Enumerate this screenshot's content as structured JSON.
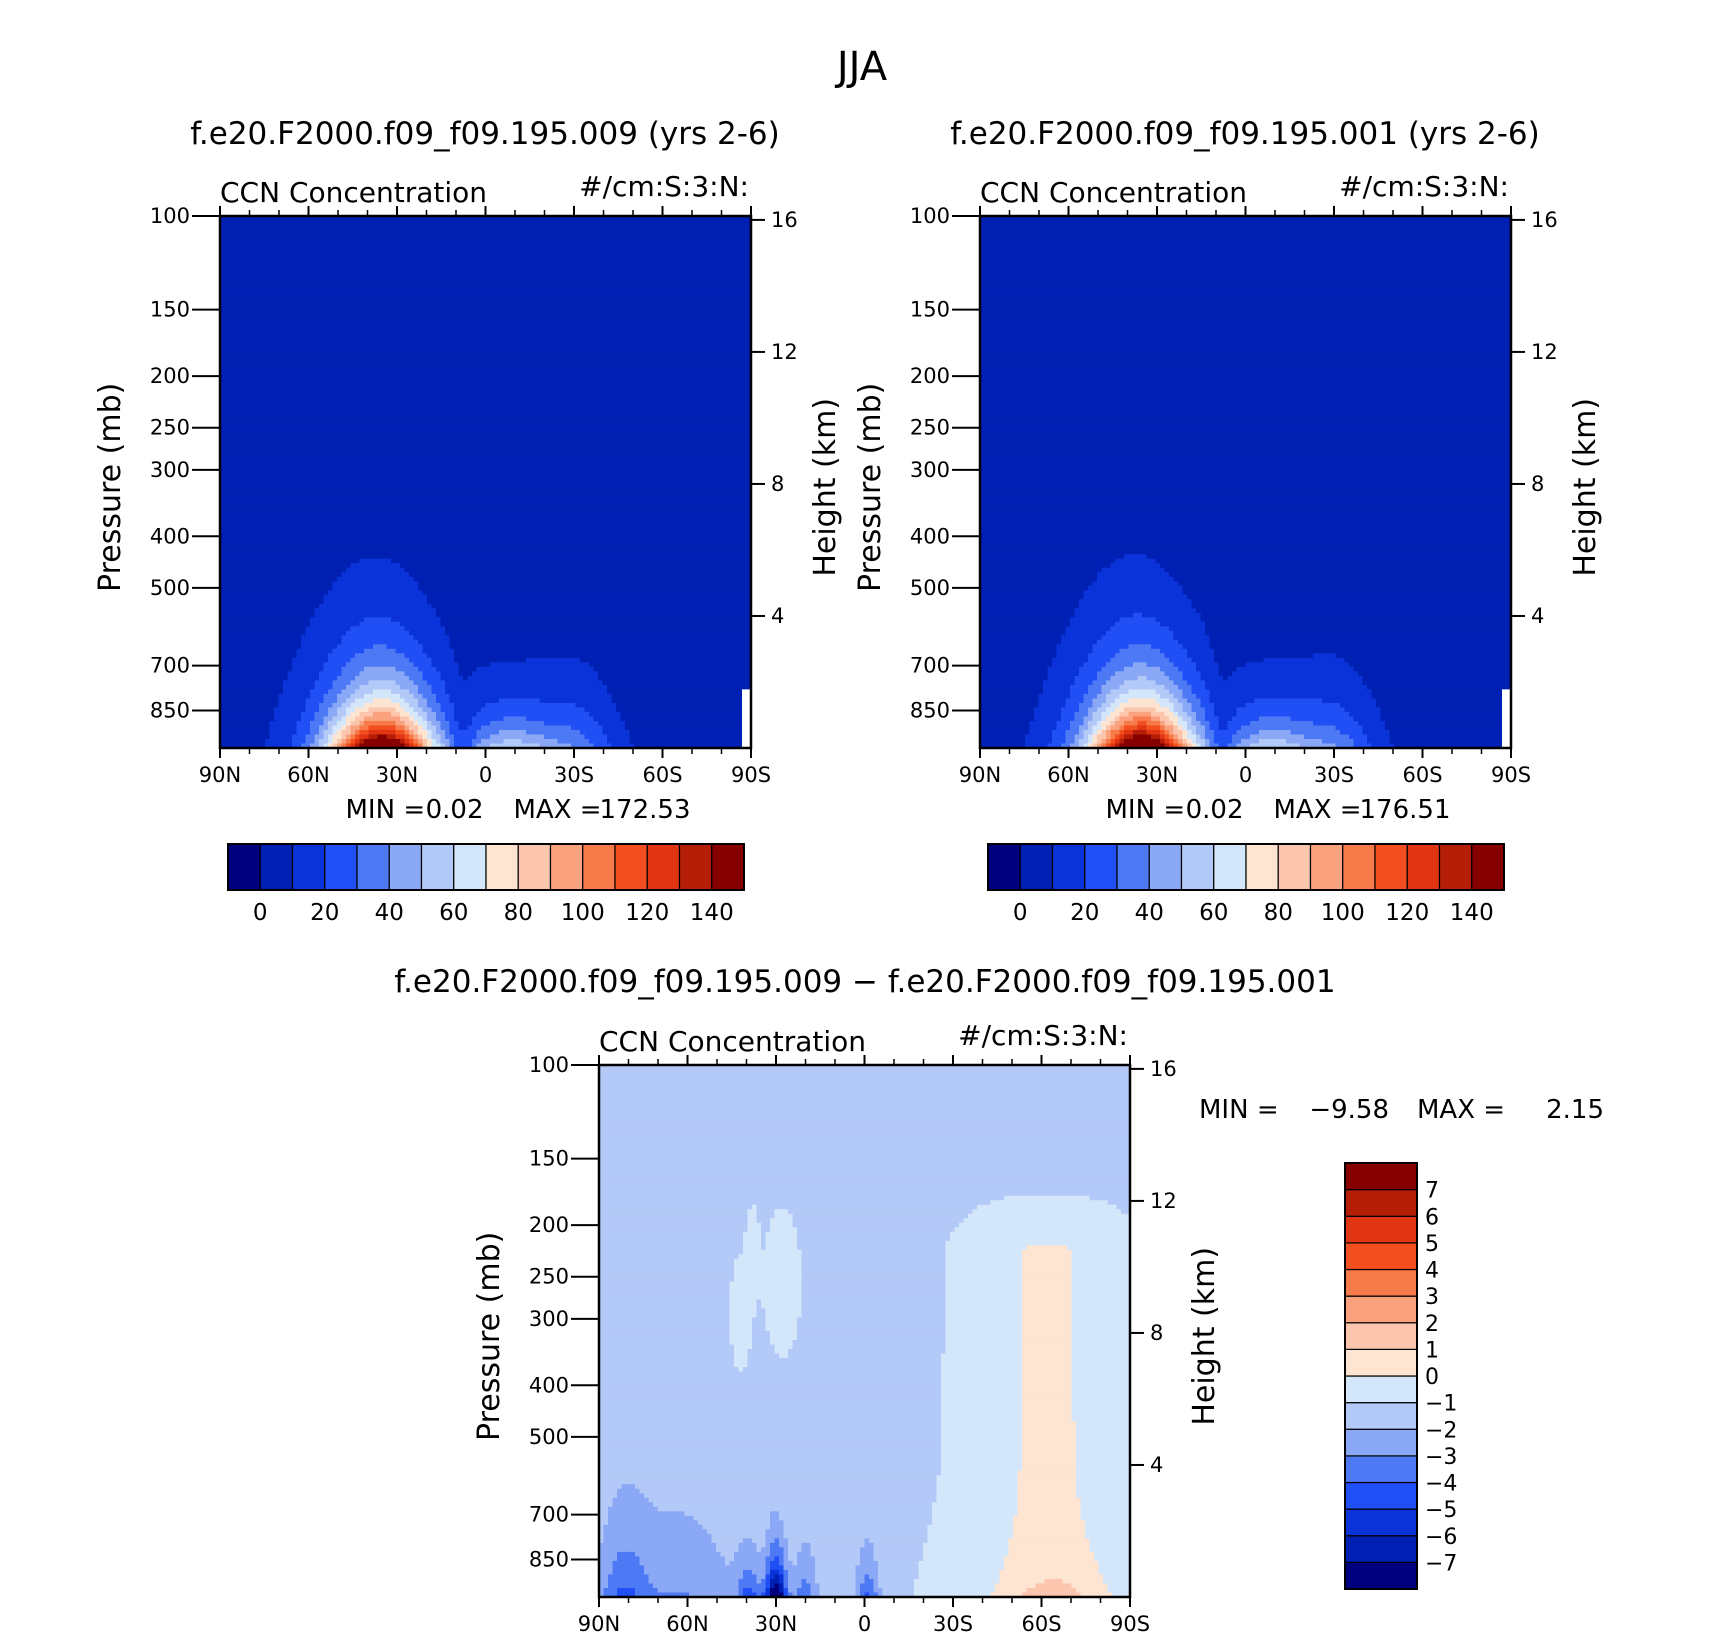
{
  "figure_title": "JJA",
  "chart_data": [
    {
      "type": "heatmap",
      "subplot": "top-left",
      "title": "f.e20.F2000.f09_f09.195.009 (yrs 2-6)",
      "variable": "CCN Concentration",
      "units": "#/cm:S:3:N:",
      "xlabel": "",
      "ylabel": "Pressure (mb)",
      "y2label": "Height (km)",
      "xticks": [
        "90N",
        "60N",
        "30N",
        "0",
        "30S",
        "60S",
        "90S"
      ],
      "yticks": [
        100,
        150,
        200,
        250,
        300,
        400,
        500,
        700,
        850
      ],
      "y2ticks": [
        16,
        12,
        8,
        4
      ],
      "stats": {
        "min_label": "MIN =",
        "min": "0.02",
        "max_label": "MAX =",
        "max": "172.53"
      },
      "colorbar": {
        "orientation": "horizontal",
        "labels": [
          "0",
          "20",
          "40",
          "60",
          "80",
          "100",
          "120",
          "140"
        ],
        "levels": [
          -10,
          0,
          10,
          20,
          30,
          40,
          50,
          60,
          70,
          80,
          90,
          100,
          110,
          120,
          130,
          140,
          150
        ]
      },
      "peak": {
        "lat": 35,
        "pressure": 900,
        "value": 172.53
      }
    },
    {
      "type": "heatmap",
      "subplot": "top-right",
      "title": "f.e20.F2000.f09_f09.195.001 (yrs 2-6)",
      "variable": "CCN Concentration",
      "units": "#/cm:S:3:N:",
      "xlabel": "",
      "ylabel": "Pressure (mb)",
      "y2label": "Height (km)",
      "xticks": [
        "90N",
        "60N",
        "30N",
        "0",
        "30S",
        "60S",
        "90S"
      ],
      "yticks": [
        100,
        150,
        200,
        250,
        300,
        400,
        500,
        700,
        850
      ],
      "y2ticks": [
        16,
        12,
        8,
        4
      ],
      "stats": {
        "min_label": "MIN =",
        "min": "0.02",
        "max_label": "MAX =",
        "max": "176.51"
      },
      "colorbar": {
        "orientation": "horizontal",
        "labels": [
          "0",
          "20",
          "40",
          "60",
          "80",
          "100",
          "120",
          "140"
        ],
        "levels": [
          -10,
          0,
          10,
          20,
          30,
          40,
          50,
          60,
          70,
          80,
          90,
          100,
          110,
          120,
          130,
          140,
          150
        ]
      },
      "peak": {
        "lat": 35,
        "pressure": 900,
        "value": 176.51
      }
    },
    {
      "type": "heatmap",
      "subplot": "bottom-difference",
      "title": "f.e20.F2000.f09_f09.195.009 − f.e20.F2000.f09_f09.195.001",
      "variable": "CCN Concentration",
      "units": "#/cm:S:3:N:",
      "xlabel": "",
      "ylabel": "Pressure (mb)",
      "y2label": "Height (km)",
      "xticks": [
        "90N",
        "60N",
        "30N",
        "0",
        "30S",
        "60S",
        "90S"
      ],
      "yticks": [
        100,
        150,
        200,
        250,
        300,
        400,
        500,
        700,
        850
      ],
      "y2ticks": [
        16,
        12,
        8,
        4
      ],
      "stats": {
        "min_label": "MIN =",
        "min": "−9.58",
        "max_label": "MAX =",
        "max": "2.15"
      },
      "colorbar": {
        "orientation": "vertical",
        "labels": [
          "7",
          "6",
          "5",
          "4",
          "3",
          "2",
          "1",
          "0",
          "−1",
          "−2",
          "−3",
          "−4",
          "−5",
          "−6",
          "−7"
        ],
        "levels": [
          -8,
          -7,
          -6,
          -5,
          -4,
          -3,
          -2,
          -1,
          0,
          1,
          2,
          3,
          4,
          5,
          6,
          7,
          8
        ]
      }
    }
  ],
  "palette": [
    "#00007f",
    "#0020b3",
    "#0a33d9",
    "#1f4ff5",
    "#4d79f5",
    "#8aa8f5",
    "#b3c9f7",
    "#d4e6fa",
    "#fde5d2",
    "#fcc6ae",
    "#f9a27d",
    "#f77a4a",
    "#f24f20",
    "#e03412",
    "#b51e06",
    "#870000"
  ]
}
